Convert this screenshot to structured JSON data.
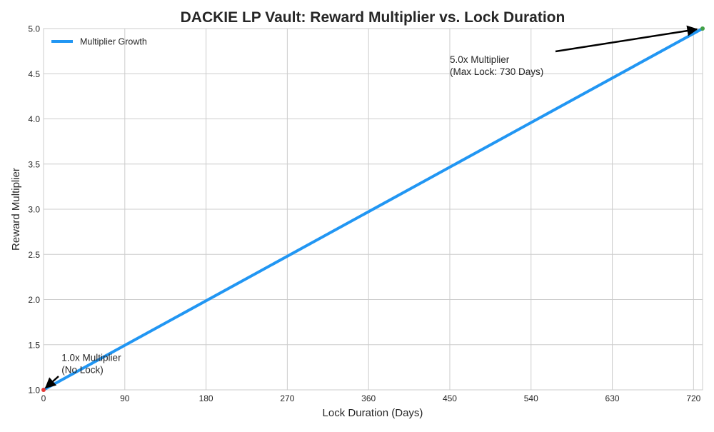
{
  "chart_data": {
    "type": "line",
    "title": "DACKIE LP Vault: Reward Multiplier vs. Lock Duration",
    "xlabel": "Lock Duration (Days)",
    "ylabel": "Reward Multiplier",
    "xlim": [
      0,
      730
    ],
    "ylim": [
      1.0,
      5.0
    ],
    "xticks": [
      0,
      90,
      180,
      270,
      360,
      450,
      540,
      630,
      720
    ],
    "yticks": [
      "1.0",
      "1.5",
      "2.0",
      "2.5",
      "3.0",
      "3.5",
      "4.0",
      "4.5",
      "5.0"
    ],
    "grid": true,
    "legend": {
      "placement": "top-left",
      "entries": [
        "Multiplier Growth"
      ]
    },
    "series": [
      {
        "name": "Multiplier Growth",
        "color": "#2196F3",
        "x": [
          0,
          730
        ],
        "y": [
          1.0,
          5.0
        ]
      }
    ],
    "markers": [
      {
        "x": 0,
        "y": 1.0,
        "color": "#e53935"
      },
      {
        "x": 730,
        "y": 5.0,
        "color": "#43a047"
      }
    ],
    "annotations": [
      {
        "lines": [
          "1.0x Multiplier",
          "(No Lock)"
        ],
        "point": [
          0,
          1.0
        ],
        "text_at": [
          20,
          1.32
        ]
      },
      {
        "lines": [
          "5.0x Multiplier",
          "(Max Lock: 730 Days)"
        ],
        "point": [
          730,
          5.0
        ],
        "text_at": [
          450,
          4.62
        ]
      }
    ]
  }
}
